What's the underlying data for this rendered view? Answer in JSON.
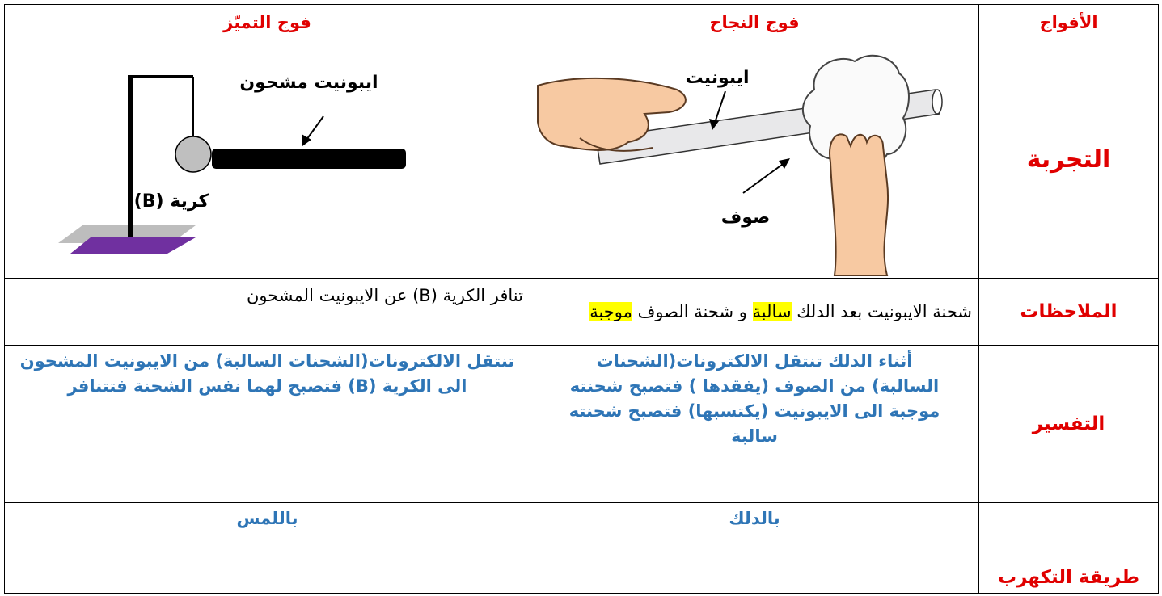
{
  "table": {
    "header": [
      "الأفواج",
      "فوج النجاح",
      "فوج التميّز"
    ],
    "rows": [
      {
        "label": "التجربة",
        "success": {
          "labels": [
            "ايبونيت",
            "صوف"
          ]
        },
        "excellence": {
          "labels": [
            "ايبونيت مشحون",
            "كرية  (B)"
          ]
        }
      },
      {
        "label": "الملاحظات",
        "success": {
          "parts": [
            {
              "text": "شحنة الايبونيت بعد الدلك ",
              "highlight": false
            },
            {
              "text": "سالبة",
              "highlight": true
            },
            {
              "text": " و شحنة الصوف ",
              "highlight": false
            },
            {
              "text": "موجبة",
              "highlight": true
            }
          ]
        },
        "excellence": {
          "text": "تنافر الكرية (B) عن الايبونيت المشحون"
        }
      },
      {
        "label": "التفسير",
        "success": {
          "text": "أثناء الدلك تنتقل الالكترونات(الشحنات السالبة) من الصوف (يفقدها ) فتصبح شحنته موجبة الى الايبونيت (يكتسبها) فتصبح شحنته سالبة"
        },
        "excellence": {
          "text": "تنتقل الالكترونات(الشحنات السالبة) من الايبونيت المشحون الى الكرية (B) فتصبح لهما نفس الشحنة فتتنافر"
        }
      },
      {
        "label": "طريقة التكهرب",
        "success": {
          "text": "بالدلك"
        },
        "excellence": {
          "text": "باللمس"
        }
      }
    ]
  }
}
